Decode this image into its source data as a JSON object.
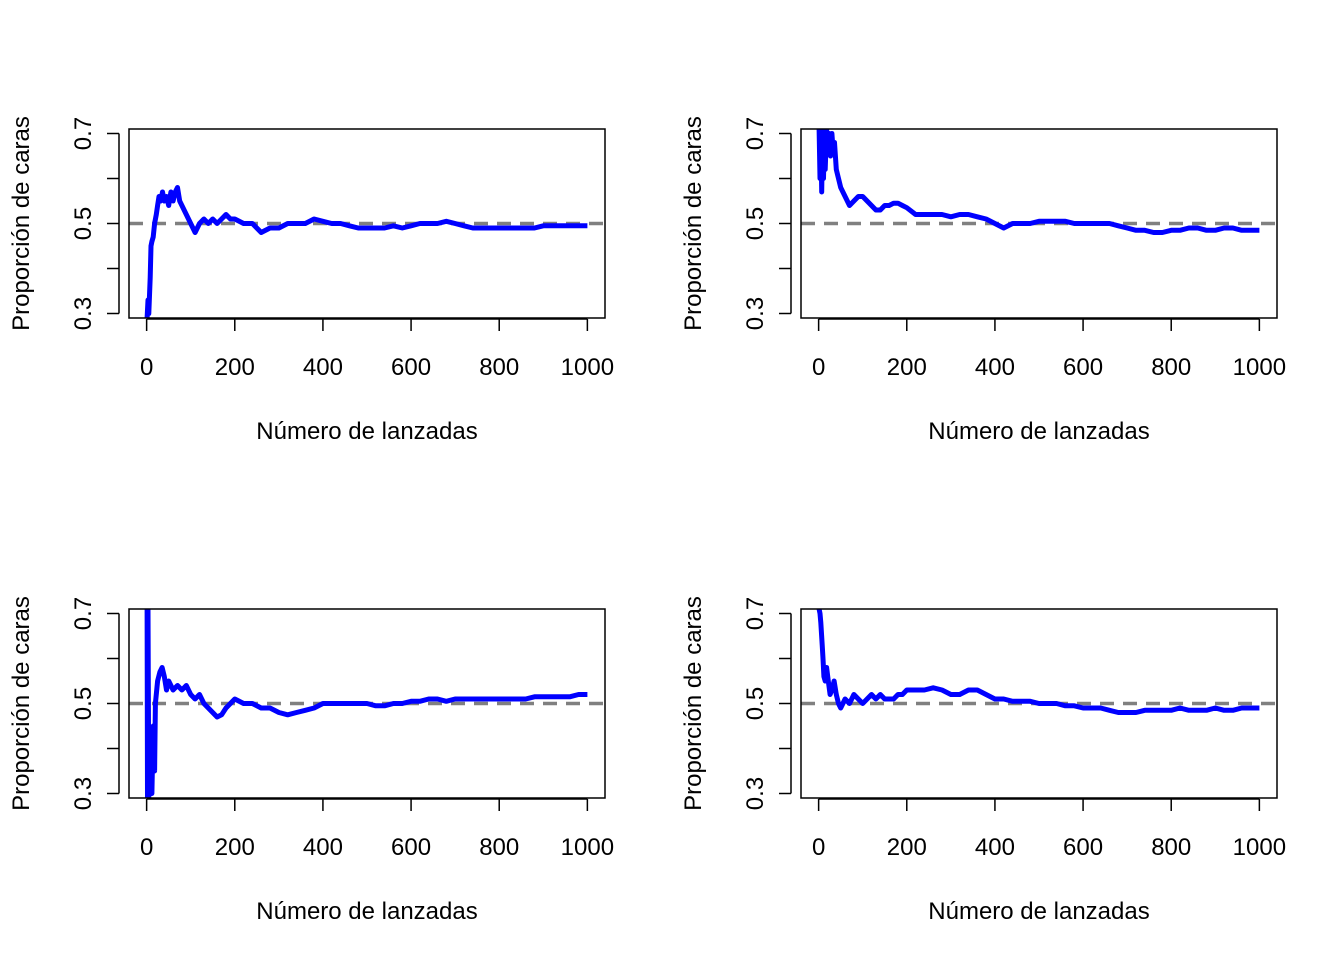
{
  "colors": {
    "series": "#0000ff",
    "reference": "#808080",
    "axis": "#000000",
    "background": "#ffffff"
  },
  "chart_data": [
    {
      "type": "line",
      "xlabel": "Número de lanzadas",
      "ylabel": "Proporción de caras",
      "xlim": [
        0,
        1000
      ],
      "ylim": [
        0.29,
        0.71
      ],
      "x_ticks": [
        0,
        200,
        400,
        600,
        800,
        1000
      ],
      "x_tick_labels": [
        "0",
        "200",
        "400",
        "600",
        "800",
        "1000"
      ],
      "y_ticks": [
        0.3,
        0.4,
        0.5,
        0.6,
        0.7
      ],
      "y_tick_labels": [
        "0.3",
        "",
        "0.5",
        "",
        "0.7"
      ],
      "reference_line": {
        "y": 0.5,
        "style": "dashed"
      },
      "grid": false,
      "series": [
        {
          "x": [
            1,
            3,
            5,
            8,
            10,
            12,
            15,
            18,
            22,
            25,
            28,
            32,
            36,
            40,
            45,
            50,
            55,
            60,
            65,
            70,
            75,
            80,
            90,
            100,
            110,
            120,
            130,
            140,
            150,
            160,
            170,
            180,
            190,
            200,
            220,
            240,
            260,
            280,
            300,
            320,
            340,
            360,
            380,
            400,
            420,
            440,
            460,
            480,
            500,
            520,
            540,
            560,
            580,
            600,
            620,
            640,
            660,
            680,
            700,
            720,
            740,
            760,
            780,
            800,
            820,
            840,
            860,
            880,
            900,
            920,
            940,
            960,
            980,
            1000
          ],
          "y": [
            0.29,
            0.33,
            0.3,
            0.38,
            0.45,
            0.46,
            0.47,
            0.5,
            0.52,
            0.54,
            0.56,
            0.55,
            0.57,
            0.55,
            0.56,
            0.54,
            0.57,
            0.55,
            0.57,
            0.58,
            0.55,
            0.54,
            0.52,
            0.5,
            0.48,
            0.5,
            0.51,
            0.5,
            0.51,
            0.5,
            0.51,
            0.52,
            0.51,
            0.51,
            0.5,
            0.5,
            0.48,
            0.49,
            0.49,
            0.5,
            0.5,
            0.5,
            0.51,
            0.505,
            0.5,
            0.5,
            0.495,
            0.49,
            0.49,
            0.49,
            0.49,
            0.495,
            0.49,
            0.495,
            0.5,
            0.5,
            0.5,
            0.505,
            0.5,
            0.495,
            0.49,
            0.49,
            0.49,
            0.49,
            0.49,
            0.49,
            0.49,
            0.49,
            0.495,
            0.495,
            0.495,
            0.495,
            0.495,
            0.495
          ]
        }
      ]
    },
    {
      "type": "line",
      "xlabel": "Número de lanzadas",
      "ylabel": "Proporción de caras",
      "xlim": [
        0,
        1000
      ],
      "ylim": [
        0.29,
        0.71
      ],
      "x_ticks": [
        0,
        200,
        400,
        600,
        800,
        1000
      ],
      "x_tick_labels": [
        "0",
        "200",
        "400",
        "600",
        "800",
        "1000"
      ],
      "y_ticks": [
        0.3,
        0.4,
        0.5,
        0.6,
        0.7
      ],
      "y_tick_labels": [
        "0.3",
        "",
        "0.5",
        "",
        "0.7"
      ],
      "reference_line": {
        "y": 0.5,
        "style": "dashed"
      },
      "grid": false,
      "series": [
        {
          "x": [
            1,
            3,
            5,
            7,
            9,
            11,
            13,
            15,
            18,
            21,
            24,
            27,
            30,
            33,
            36,
            40,
            45,
            50,
            55,
            60,
            70,
            80,
            90,
            100,
            110,
            120,
            130,
            140,
            150,
            160,
            170,
            180,
            190,
            200,
            220,
            240,
            260,
            280,
            300,
            320,
            340,
            360,
            380,
            400,
            420,
            440,
            460,
            480,
            500,
            520,
            540,
            560,
            580,
            600,
            620,
            640,
            660,
            680,
            700,
            720,
            740,
            760,
            780,
            800,
            820,
            840,
            860,
            880,
            900,
            920,
            940,
            960,
            980,
            1000
          ],
          "y": [
            0.71,
            0.6,
            0.71,
            0.57,
            0.71,
            0.6,
            0.7,
            0.62,
            0.71,
            0.66,
            0.7,
            0.65,
            0.7,
            0.66,
            0.68,
            0.62,
            0.6,
            0.58,
            0.57,
            0.56,
            0.54,
            0.55,
            0.56,
            0.56,
            0.55,
            0.54,
            0.53,
            0.53,
            0.54,
            0.54,
            0.545,
            0.545,
            0.54,
            0.535,
            0.52,
            0.52,
            0.52,
            0.52,
            0.515,
            0.52,
            0.52,
            0.515,
            0.51,
            0.5,
            0.49,
            0.5,
            0.5,
            0.5,
            0.505,
            0.505,
            0.505,
            0.505,
            0.5,
            0.5,
            0.5,
            0.5,
            0.5,
            0.495,
            0.49,
            0.485,
            0.485,
            0.48,
            0.48,
            0.485,
            0.485,
            0.49,
            0.49,
            0.485,
            0.485,
            0.49,
            0.49,
            0.485,
            0.485,
            0.485
          ]
        }
      ]
    },
    {
      "type": "line",
      "xlabel": "Número de lanzadas",
      "ylabel": "Proporción de caras",
      "xlim": [
        0,
        1000
      ],
      "ylim": [
        0.29,
        0.71
      ],
      "x_ticks": [
        0,
        200,
        400,
        600,
        800,
        1000
      ],
      "x_tick_labels": [
        "0",
        "200",
        "400",
        "600",
        "800",
        "1000"
      ],
      "y_ticks": [
        0.3,
        0.4,
        0.5,
        0.6,
        0.7
      ],
      "y_tick_labels": [
        "0.3",
        "",
        "0.5",
        "",
        "0.7"
      ],
      "reference_line": {
        "y": 0.5,
        "style": "dashed"
      },
      "grid": false,
      "series": [
        {
          "x": [
            1,
            2,
            3,
            5,
            8,
            12,
            15,
            18,
            20,
            25,
            30,
            35,
            40,
            45,
            50,
            55,
            60,
            70,
            80,
            90,
            100,
            110,
            120,
            130,
            140,
            150,
            160,
            170,
            180,
            190,
            200,
            220,
            240,
            260,
            280,
            300,
            320,
            340,
            360,
            380,
            400,
            420,
            440,
            460,
            480,
            500,
            520,
            540,
            560,
            580,
            600,
            620,
            640,
            660,
            680,
            700,
            720,
            740,
            760,
            780,
            800,
            820,
            840,
            860,
            880,
            900,
            920,
            940,
            960,
            980,
            1000
          ],
          "y": [
            0.71,
            0.29,
            0.71,
            0.29,
            0.4,
            0.3,
            0.45,
            0.35,
            0.5,
            0.55,
            0.57,
            0.58,
            0.56,
            0.53,
            0.55,
            0.54,
            0.53,
            0.54,
            0.53,
            0.54,
            0.52,
            0.51,
            0.52,
            0.5,
            0.49,
            0.48,
            0.47,
            0.475,
            0.49,
            0.5,
            0.51,
            0.5,
            0.5,
            0.49,
            0.49,
            0.48,
            0.475,
            0.48,
            0.485,
            0.49,
            0.5,
            0.5,
            0.5,
            0.5,
            0.5,
            0.5,
            0.495,
            0.495,
            0.5,
            0.5,
            0.505,
            0.505,
            0.51,
            0.51,
            0.505,
            0.51,
            0.51,
            0.51,
            0.51,
            0.51,
            0.51,
            0.51,
            0.51,
            0.51,
            0.515,
            0.515,
            0.515,
            0.515,
            0.515,
            0.52,
            0.52
          ]
        }
      ]
    },
    {
      "type": "line",
      "xlabel": "Número de lanzadas",
      "ylabel": "Proporción de caras",
      "xlim": [
        0,
        1000
      ],
      "ylim": [
        0.29,
        0.71
      ],
      "x_ticks": [
        0,
        200,
        400,
        600,
        800,
        1000
      ],
      "x_tick_labels": [
        "0",
        "200",
        "400",
        "600",
        "800",
        "1000"
      ],
      "y_ticks": [
        0.3,
        0.4,
        0.5,
        0.6,
        0.7
      ],
      "y_tick_labels": [
        "0.3",
        "",
        "0.5",
        "",
        "0.7"
      ],
      "reference_line": {
        "y": 0.5,
        "style": "dashed"
      },
      "grid": false,
      "series": [
        {
          "x": [
            1,
            3,
            5,
            8,
            10,
            12,
            15,
            18,
            22,
            26,
            30,
            35,
            40,
            45,
            50,
            55,
            60,
            70,
            80,
            90,
            100,
            110,
            120,
            130,
            140,
            150,
            160,
            170,
            180,
            190,
            200,
            220,
            240,
            260,
            280,
            300,
            320,
            340,
            360,
            380,
            400,
            420,
            440,
            460,
            480,
            500,
            520,
            540,
            560,
            580,
            600,
            620,
            640,
            660,
            680,
            700,
            720,
            740,
            760,
            780,
            800,
            820,
            840,
            860,
            880,
            900,
            920,
            940,
            960,
            980,
            1000
          ],
          "y": [
            0.71,
            0.7,
            0.68,
            0.63,
            0.6,
            0.56,
            0.55,
            0.58,
            0.55,
            0.52,
            0.53,
            0.55,
            0.52,
            0.5,
            0.49,
            0.5,
            0.51,
            0.5,
            0.52,
            0.51,
            0.5,
            0.51,
            0.52,
            0.51,
            0.52,
            0.51,
            0.51,
            0.51,
            0.52,
            0.52,
            0.53,
            0.53,
            0.53,
            0.535,
            0.53,
            0.52,
            0.52,
            0.53,
            0.53,
            0.52,
            0.51,
            0.51,
            0.505,
            0.505,
            0.505,
            0.5,
            0.5,
            0.5,
            0.495,
            0.495,
            0.49,
            0.49,
            0.49,
            0.485,
            0.48,
            0.48,
            0.48,
            0.485,
            0.485,
            0.485,
            0.485,
            0.49,
            0.485,
            0.485,
            0.485,
            0.49,
            0.485,
            0.485,
            0.49,
            0.49,
            0.49
          ]
        }
      ]
    }
  ]
}
